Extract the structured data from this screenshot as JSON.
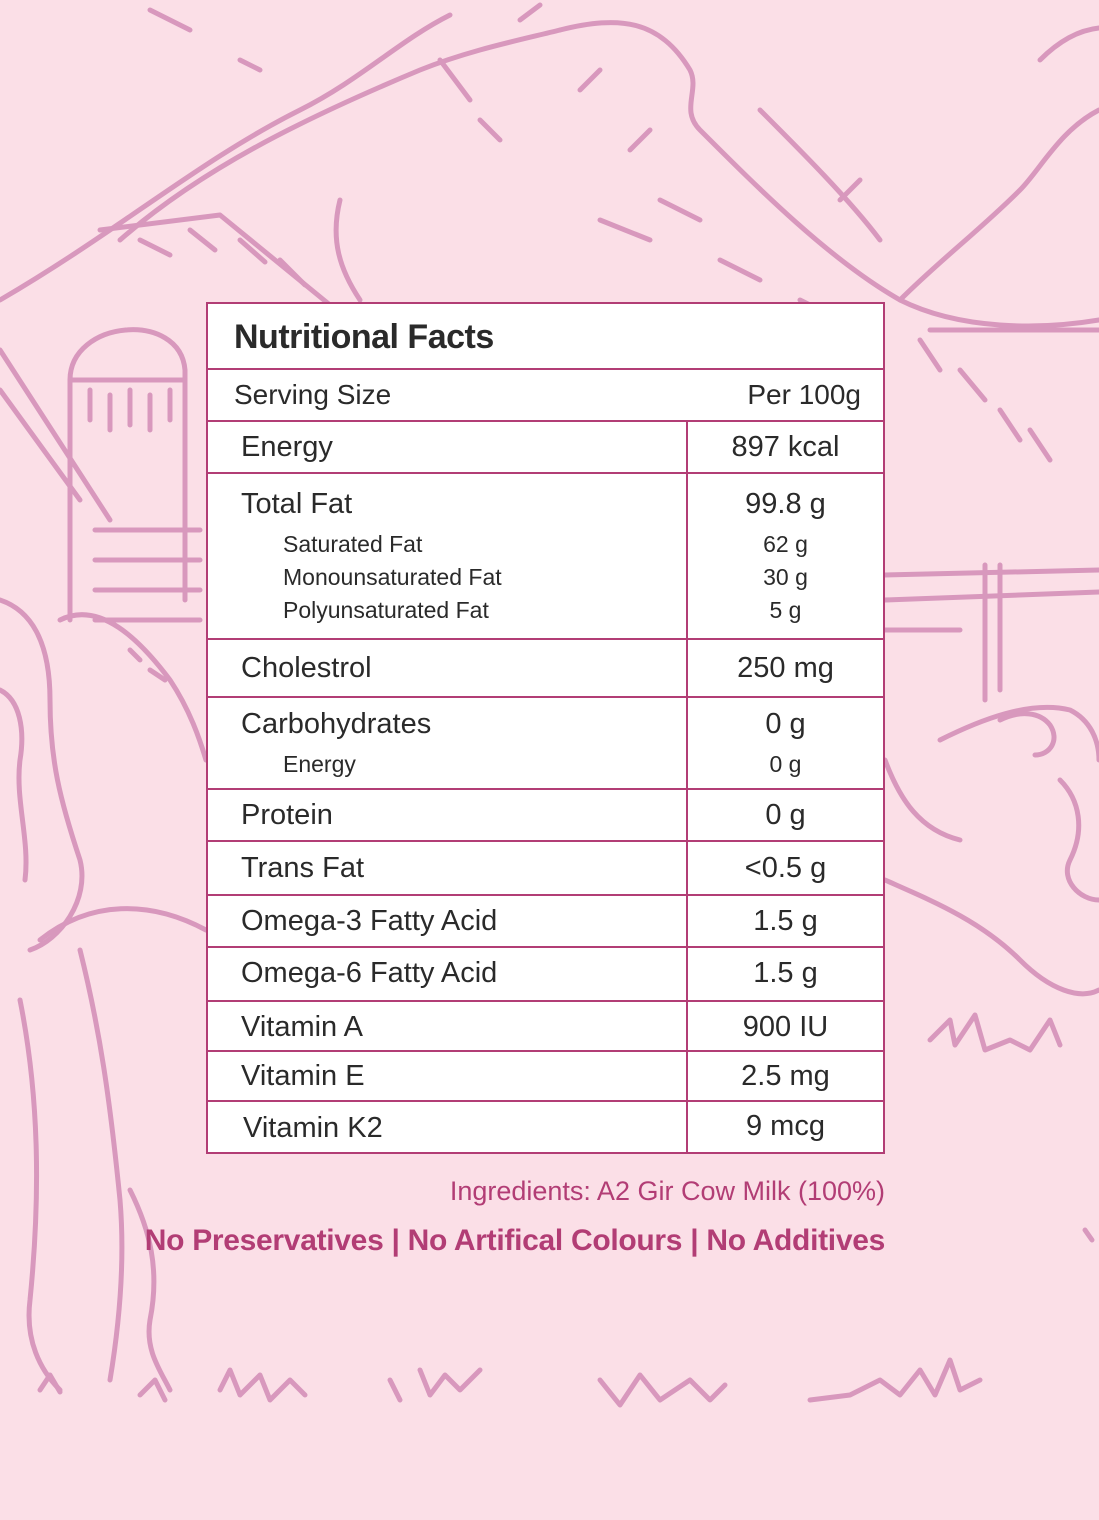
{
  "background": {
    "base_color": "#fbdfe7",
    "line_color": "#d898bd",
    "art": "farm-landscape-illustration"
  },
  "nutrition": {
    "title": "Nutritional Facts",
    "serving_label": "Serving Size",
    "serving_value": "Per 100g",
    "rows": [
      {
        "name": "Energy",
        "value": "897 kcal"
      },
      {
        "name": "Total Fat",
        "value": "99.8 g",
        "subs": [
          {
            "name": "Saturated Fat",
            "value": "62 g"
          },
          {
            "name": "Monounsaturated Fat",
            "value": "30 g"
          },
          {
            "name": "Polyunsaturated Fat",
            "value": "5 g"
          }
        ]
      },
      {
        "name": "Cholestrol",
        "value": "250 mg"
      },
      {
        "name": "Carbohydrates",
        "value": "0 g",
        "subs": [
          {
            "name": "Energy",
            "value": "0 g"
          }
        ]
      },
      {
        "name": "Protein",
        "value": "0 g"
      },
      {
        "name": "Trans Fat",
        "value": "<0.5 g"
      },
      {
        "name": "Omega-3 Fatty Acid",
        "value": "1.5 g"
      },
      {
        "name": "Omega-6 Fatty Acid",
        "value": "1.5 g"
      },
      {
        "name": "Vitamin A",
        "value": "900 IU"
      },
      {
        "name": "Vitamin E",
        "value": "2.5 mg"
      },
      {
        "name": "Vitamin K2",
        "value": "9 mcg"
      }
    ]
  },
  "ingredients": "Ingredients: A2 Gir Cow Milk (100%)",
  "claims": "No Preservatives | No Artifical Colours | No Additives",
  "colors": {
    "accent": "#b23d75",
    "border": "#b23d75",
    "text": "#2a2a2a"
  }
}
